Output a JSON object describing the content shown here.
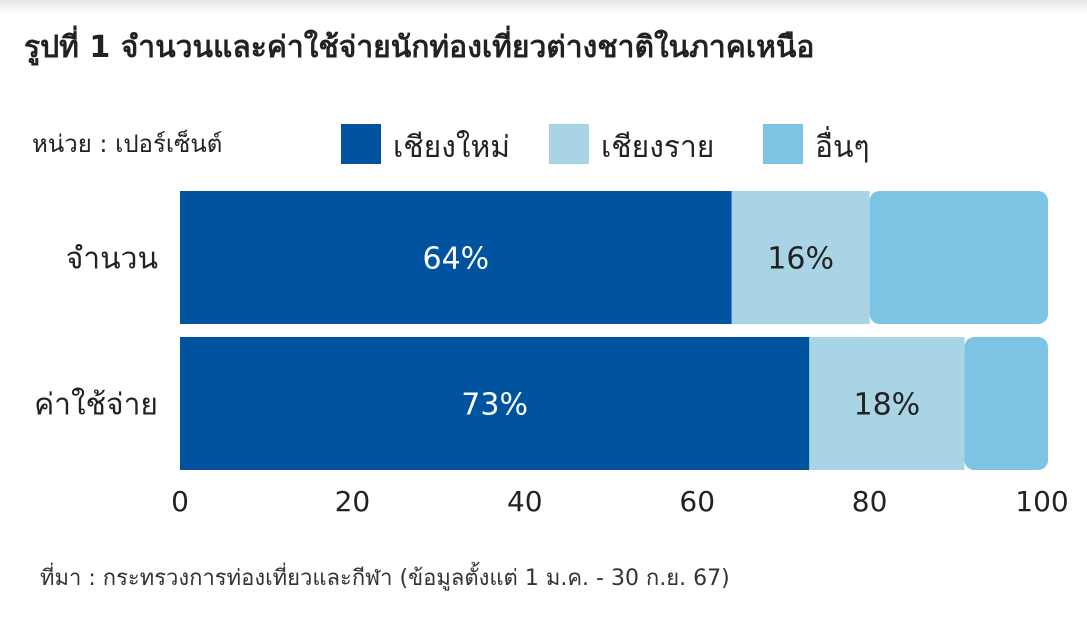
{
  "title": "รูปที่ 1 จำนวนและค่าใช้จ่ายนักท่องเที่ยวต่างชาติในภาคเหนือ",
  "source": "ที่มา : กระทรวงการท่องเที่ยวและกีฬา (ข้อมูลตั้งแต่ 1 ม.ค. - 30 ก.ย. 67)",
  "colors": {
    "chiang_mai": "#00539f",
    "chiang_rai": "#a9d4e6",
    "other": "#7dc4e4",
    "label_dark": "#222222",
    "label_light": "#ffffff"
  },
  "chart_data": {
    "type": "bar",
    "orientation": "horizontal",
    "stacked": true,
    "unit_label": "หน่วย : เปอร์เซ็นต์",
    "categories": [
      "จำนวน",
      "ค่าใช้จ่าย"
    ],
    "series": [
      {
        "name": "เชียงใหม่",
        "values": [
          64,
          73
        ],
        "labels": [
          "64%",
          "73%"
        ]
      },
      {
        "name": "เชียงราย",
        "values": [
          16,
          18
        ],
        "labels": [
          "16%",
          "18%"
        ]
      },
      {
        "name": "อื่นๆ",
        "values": [
          20,
          9
        ],
        "labels": [
          "",
          ""
        ]
      }
    ],
    "xlim": [
      0,
      100
    ],
    "xticks": [
      "0",
      "20",
      "40",
      "60",
      "80",
      "100"
    ],
    "legend": "top"
  }
}
